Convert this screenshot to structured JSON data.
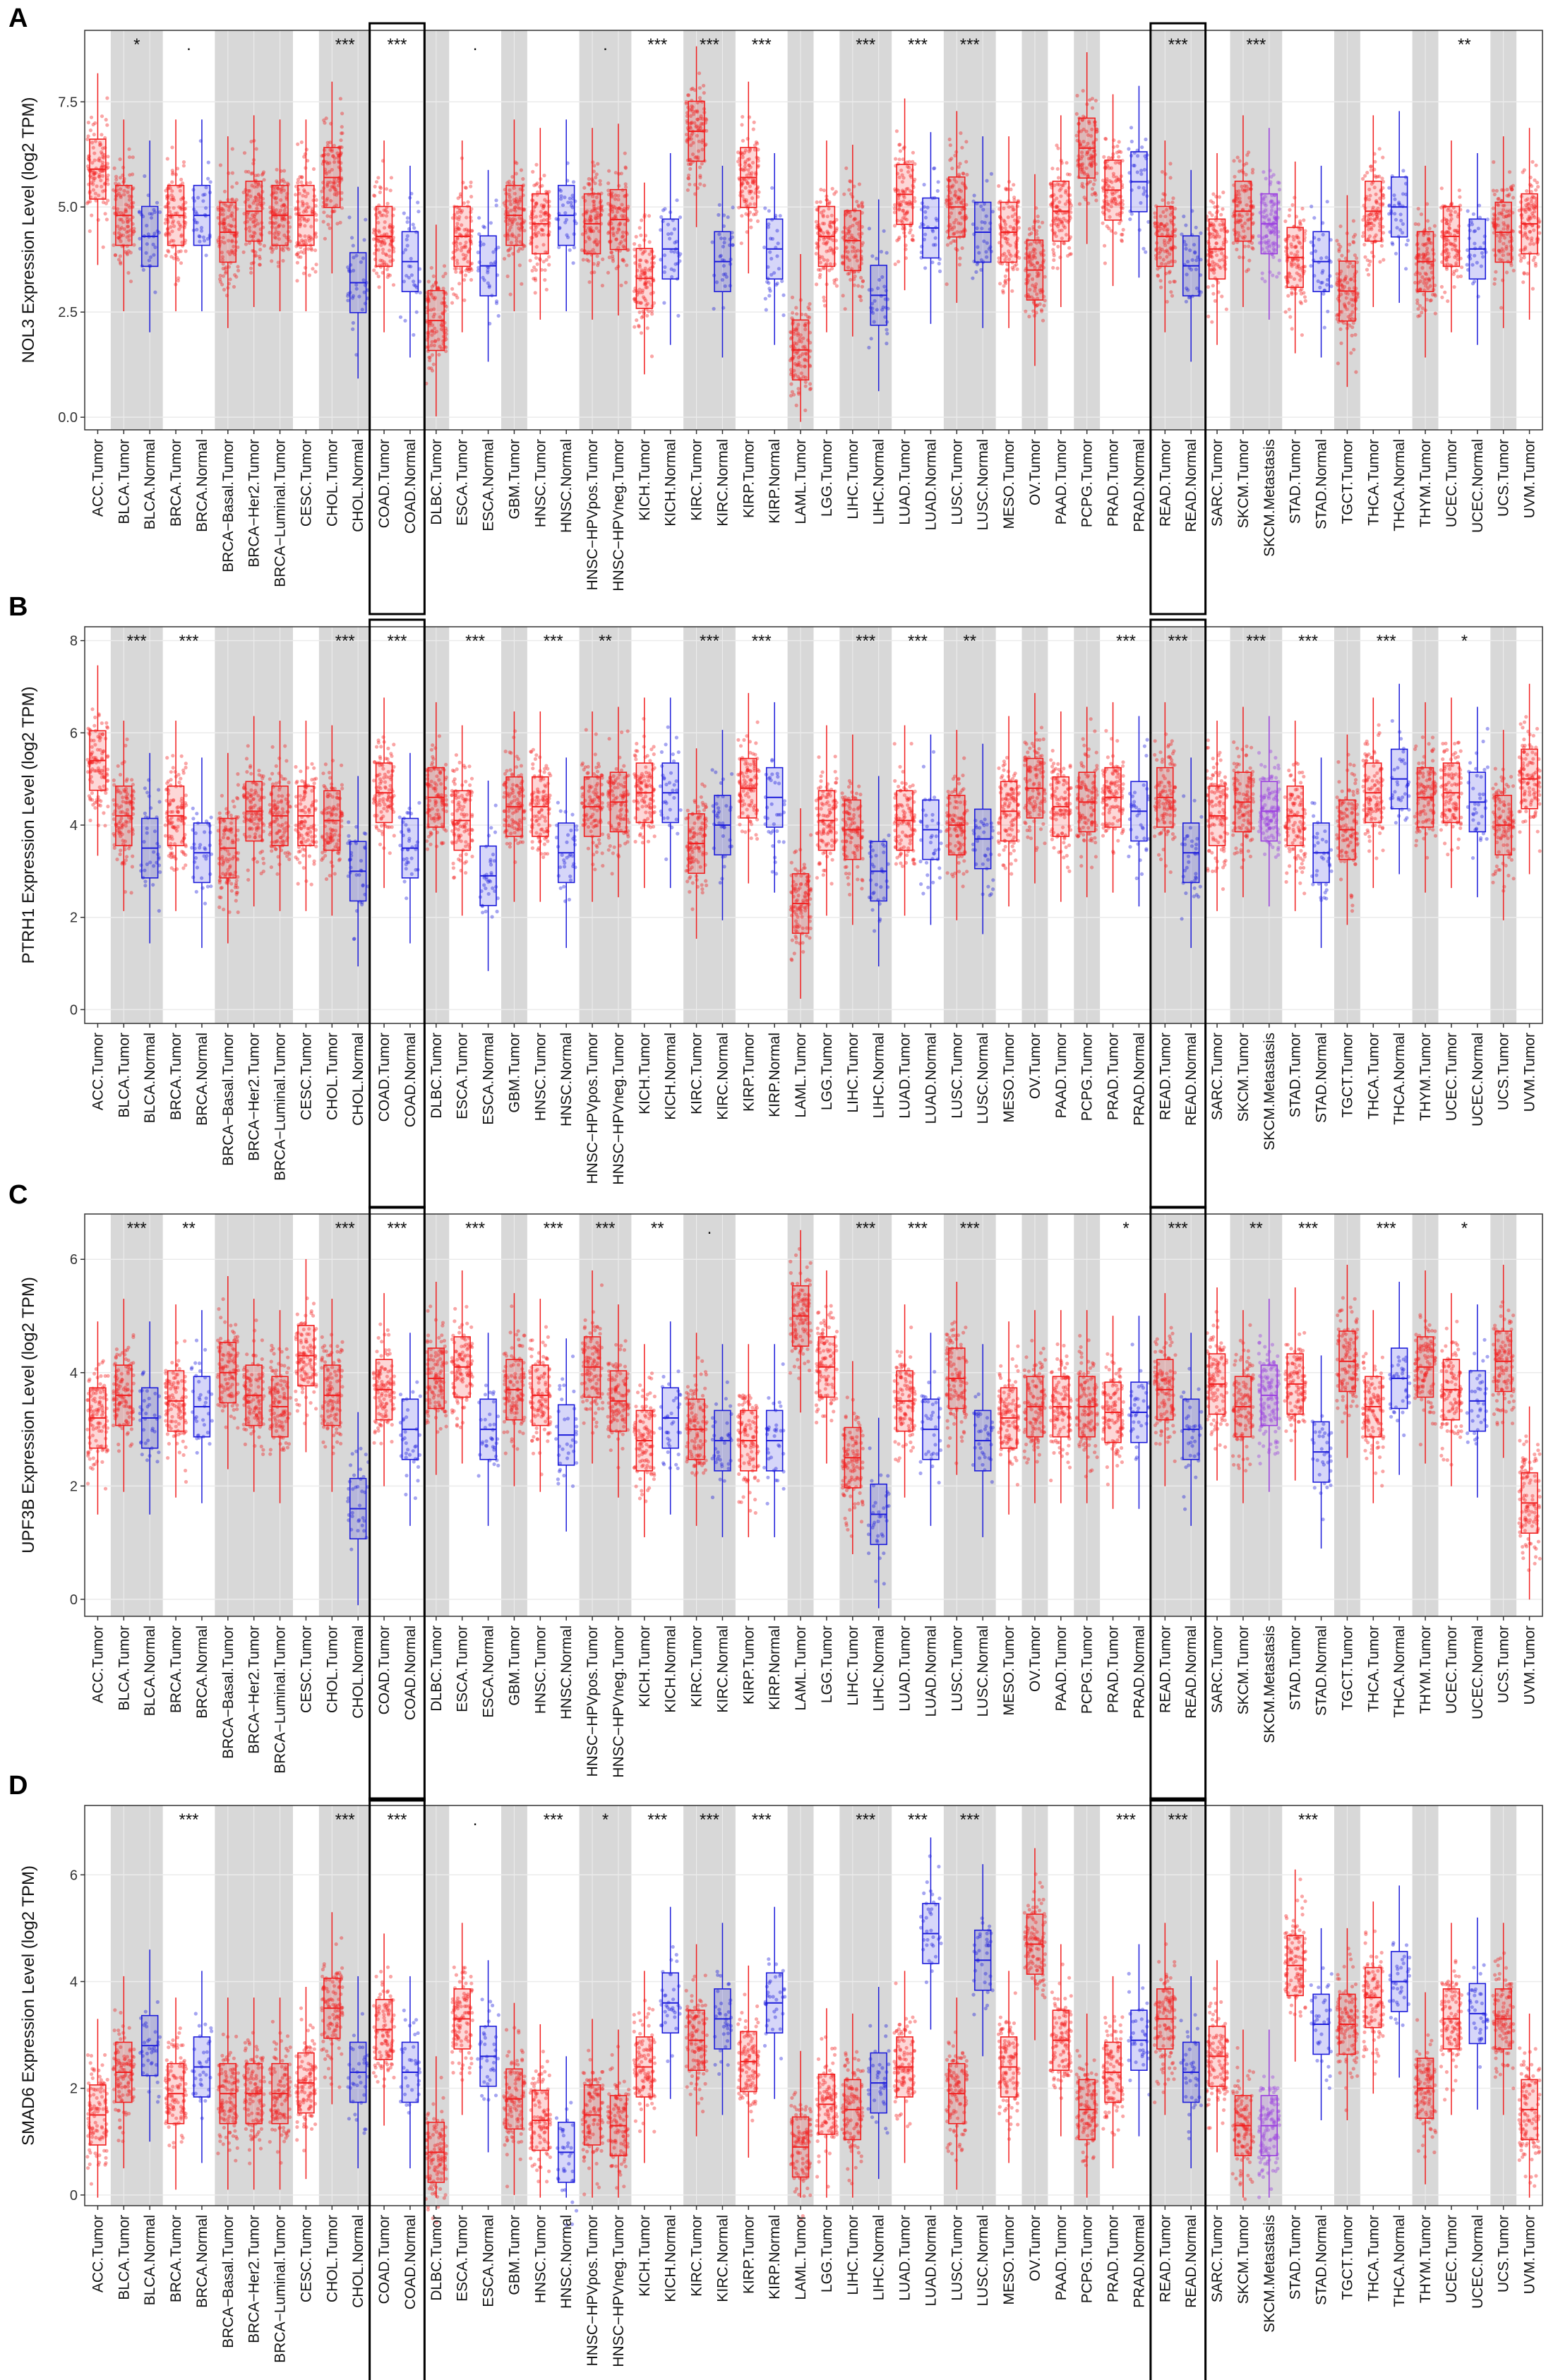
{
  "figure": {
    "panel_letters": [
      "A",
      "B",
      "C",
      "D"
    ],
    "highlight_groups": [
      "COAD",
      "READ"
    ],
    "colors": {
      "tumor": "#f21f1f",
      "normal": "#1d1ddb",
      "metastasis": "#9c3fe0",
      "band": "#d8d8d8",
      "grid": "#ebebeb",
      "frame": "#333333",
      "highlight_box": "#000000"
    }
  },
  "categories": [
    "ACC.Tumor",
    "BLCA.Tumor",
    "BLCA.Normal",
    "BRCA.Tumor",
    "BRCA.Normal",
    "BRCA−Basal.Tumor",
    "BRCA−Her2.Tumor",
    "BRCA−Luminal.Tumor",
    "CESC.Tumor",
    "CHOL.Tumor",
    "CHOL.Normal",
    "COAD.Tumor",
    "COAD.Normal",
    "DLBC.Tumor",
    "ESCA.Tumor",
    "ESCA.Normal",
    "GBM.Tumor",
    "HNSC.Tumor",
    "HNSC.Normal",
    "HNSC−HPVpos.Tumor",
    "HNSC−HPVneg.Tumor",
    "KICH.Tumor",
    "KICH.Normal",
    "KIRC.Tumor",
    "KIRC.Normal",
    "KIRP.Tumor",
    "KIRP.Normal",
    "LAML.Tumor",
    "LGG.Tumor",
    "LIHC.Tumor",
    "LIHC.Normal",
    "LUAD.Tumor",
    "LUAD.Normal",
    "LUSC.Tumor",
    "LUSC.Normal",
    "MESO.Tumor",
    "OV.Tumor",
    "PAAD.Tumor",
    "PCPG.Tumor",
    "PRAD.Tumor",
    "PRAD.Normal",
    "READ.Tumor",
    "READ.Normal",
    "SARC.Tumor",
    "SKCM.Tumor",
    "SKCM.Metastasis",
    "STAD.Tumor",
    "STAD.Normal",
    "TGCT.Tumor",
    "THCA.Tumor",
    "THCA.Normal",
    "THYM.Tumor",
    "UCEC.Tumor",
    "UCEC.Normal",
    "UCS.Tumor",
    "UVM.Tumor"
  ],
  "chart_data": [
    {
      "type": "box",
      "title": "A",
      "xlabel": "",
      "ylabel": "NOL3 Expression Level (log2 TPM)",
      "ylim": [
        -0.3,
        9.2
      ],
      "yticks": [
        0.0,
        2.5,
        5.0,
        7.5
      ],
      "ytick_labels": [
        "0.0",
        "2.5",
        "5.0",
        "7.5"
      ],
      "significance": [
        {
          "group": "BLCA",
          "label": "*"
        },
        {
          "group": "BRCA",
          "label": "."
        },
        {
          "group": "CHOL",
          "label": "***"
        },
        {
          "group": "COAD",
          "label": "***"
        },
        {
          "group": "ESCA",
          "label": "."
        },
        {
          "group": "HNSC-HPV",
          "label": "."
        },
        {
          "group": "KICH",
          "label": "***"
        },
        {
          "group": "KIRC",
          "label": "***"
        },
        {
          "group": "KIRP",
          "label": "***"
        },
        {
          "group": "LIHC",
          "label": "***"
        },
        {
          "group": "LUAD",
          "label": "***"
        },
        {
          "group": "LUSC",
          "label": "***"
        },
        {
          "group": "READ",
          "label": "***"
        },
        {
          "group": "SKCM",
          "label": "***"
        },
        {
          "group": "UCEC",
          "label": "**"
        }
      ],
      "medians": [
        5.9,
        4.8,
        4.3,
        4.8,
        4.8,
        4.4,
        4.9,
        4.8,
        4.8,
        5.7,
        3.2,
        4.3,
        3.7,
        2.3,
        4.3,
        3.6,
        4.8,
        4.6,
        4.8,
        4.6,
        4.7,
        3.3,
        4.0,
        6.8,
        3.7,
        5.7,
        4.0,
        1.6,
        4.3,
        4.2,
        2.9,
        5.3,
        4.5,
        5.0,
        4.4,
        4.4,
        3.5,
        4.9,
        6.4,
        5.4,
        5.6,
        4.3,
        3.6,
        4.0,
        4.9,
        4.6,
        3.8,
        3.7,
        3.0,
        4.9,
        5.0,
        3.7,
        4.3,
        4.0,
        4.4,
        4.6
      ]
    },
    {
      "type": "box",
      "title": "B",
      "xlabel": "",
      "ylabel": "PTRH1 Expression Level (log2 TPM)",
      "ylim": [
        -0.3,
        8.3
      ],
      "yticks": [
        0,
        2,
        4,
        6,
        8
      ],
      "ytick_labels": [
        "0",
        "2",
        "4",
        "6",
        "8"
      ],
      "significance": [
        {
          "group": "BLCA",
          "label": "***"
        },
        {
          "group": "BRCA",
          "label": "***"
        },
        {
          "group": "CHOL",
          "label": "***"
        },
        {
          "group": "COAD",
          "label": "***"
        },
        {
          "group": "ESCA",
          "label": "***"
        },
        {
          "group": "HNSC",
          "label": "***"
        },
        {
          "group": "HNSC-HPV",
          "label": "**"
        },
        {
          "group": "KIRC",
          "label": "***"
        },
        {
          "group": "KIRP",
          "label": "***"
        },
        {
          "group": "LIHC",
          "label": "***"
        },
        {
          "group": "LUAD",
          "label": "***"
        },
        {
          "group": "LUSC",
          "label": "**"
        },
        {
          "group": "PRAD",
          "label": "***"
        },
        {
          "group": "READ",
          "label": "***"
        },
        {
          "group": "SKCM",
          "label": "***"
        },
        {
          "group": "STAD",
          "label": "***"
        },
        {
          "group": "THCA",
          "label": "***"
        },
        {
          "group": "UCEC",
          "label": "*"
        }
      ],
      "medians": [
        5.4,
        4.2,
        3.5,
        4.2,
        3.4,
        3.5,
        4.3,
        4.2,
        4.2,
        4.1,
        3.0,
        4.7,
        3.5,
        4.6,
        4.1,
        2.9,
        4.4,
        4.4,
        3.4,
        4.4,
        4.5,
        4.7,
        4.7,
        3.6,
        4.0,
        4.8,
        4.6,
        2.3,
        4.1,
        3.9,
        3.0,
        4.1,
        3.9,
        4.0,
        3.7,
        4.3,
        4.8,
        4.4,
        4.5,
        4.6,
        4.3,
        4.6,
        3.4,
        4.2,
        4.5,
        4.3,
        4.2,
        3.4,
        3.9,
        4.7,
        5.0,
        4.6,
        4.7,
        4.5,
        4.0,
        5.0
      ]
    },
    {
      "type": "box",
      "title": "C",
      "xlabel": "",
      "ylabel": "UPF3B Expression Level (log2 TPM)",
      "ylim": [
        -0.3,
        6.8
      ],
      "yticks": [
        0,
        2,
        4,
        6
      ],
      "ytick_labels": [
        "0",
        "2",
        "4",
        "6"
      ],
      "significance": [
        {
          "group": "BLCA",
          "label": "***"
        },
        {
          "group": "BRCA",
          "label": "**"
        },
        {
          "group": "CHOL",
          "label": "***"
        },
        {
          "group": "COAD",
          "label": "***"
        },
        {
          "group": "ESCA",
          "label": "***"
        },
        {
          "group": "HNSC",
          "label": "***"
        },
        {
          "group": "HNSC-HPV",
          "label": "***"
        },
        {
          "group": "KICH",
          "label": "**"
        },
        {
          "group": "KIRC",
          "label": "."
        },
        {
          "group": "LIHC",
          "label": "***"
        },
        {
          "group": "LUAD",
          "label": "***"
        },
        {
          "group": "LUSC",
          "label": "***"
        },
        {
          "group": "PRAD",
          "label": "*"
        },
        {
          "group": "READ",
          "label": "***"
        },
        {
          "group": "SKCM",
          "label": "**"
        },
        {
          "group": "STAD",
          "label": "***"
        },
        {
          "group": "THCA",
          "label": "***"
        },
        {
          "group": "UCEC",
          "label": "*"
        }
      ],
      "medians": [
        3.2,
        3.6,
        3.2,
        3.5,
        3.4,
        4.0,
        3.6,
        3.4,
        4.3,
        3.6,
        1.6,
        3.7,
        3.0,
        3.9,
        4.1,
        3.0,
        3.7,
        3.6,
        2.9,
        4.1,
        3.5,
        2.8,
        3.2,
        3.0,
        2.8,
        2.8,
        2.8,
        5.0,
        4.1,
        2.5,
        1.5,
        3.5,
        3.0,
        3.9,
        2.8,
        3.2,
        3.4,
        3.4,
        3.4,
        3.3,
        3.3,
        3.7,
        3.0,
        3.8,
        3.4,
        3.6,
        3.8,
        2.6,
        4.2,
        3.4,
        3.9,
        4.1,
        3.7,
        3.5,
        4.2,
        1.7
      ]
    },
    {
      "type": "box",
      "title": "D",
      "xlabel": "",
      "ylabel": "SMAD6 Expression Level (log2 TPM)",
      "ylim": [
        -0.2,
        7.3
      ],
      "yticks": [
        0,
        2,
        4,
        6
      ],
      "ytick_labels": [
        "0",
        "2",
        "4",
        "6"
      ],
      "significance": [
        {
          "group": "BRCA",
          "label": "***"
        },
        {
          "group": "CHOL",
          "label": "***"
        },
        {
          "group": "COAD",
          "label": "***"
        },
        {
          "group": "ESCA",
          "label": "."
        },
        {
          "group": "HNSC",
          "label": "***"
        },
        {
          "group": "HNSC-HPV",
          "label": "*"
        },
        {
          "group": "KICH",
          "label": "***"
        },
        {
          "group": "KIRC",
          "label": "***"
        },
        {
          "group": "KIRP",
          "label": "***"
        },
        {
          "group": "LIHC",
          "label": "***"
        },
        {
          "group": "LUAD",
          "label": "***"
        },
        {
          "group": "LUSC",
          "label": "***"
        },
        {
          "group": "PRAD",
          "label": "***"
        },
        {
          "group": "READ",
          "label": "***"
        },
        {
          "group": "STAD",
          "label": "***"
        }
      ],
      "medians": [
        1.5,
        2.3,
        2.8,
        1.9,
        2.4,
        1.9,
        1.9,
        1.9,
        2.1,
        3.5,
        2.3,
        3.1,
        2.3,
        0.8,
        3.3,
        2.6,
        1.8,
        1.4,
        0.8,
        1.5,
        1.3,
        2.4,
        3.6,
        2.9,
        3.3,
        2.5,
        3.6,
        0.9,
        1.7,
        1.6,
        2.1,
        2.4,
        4.9,
        1.9,
        4.4,
        2.4,
        4.7,
        2.9,
        1.6,
        2.3,
        2.9,
        3.3,
        2.3,
        2.6,
        1.3,
        1.3,
        4.3,
        3.2,
        3.2,
        3.7,
        4.0,
        2.0,
        3.3,
        3.4,
        3.3,
        1.6
      ]
    }
  ]
}
